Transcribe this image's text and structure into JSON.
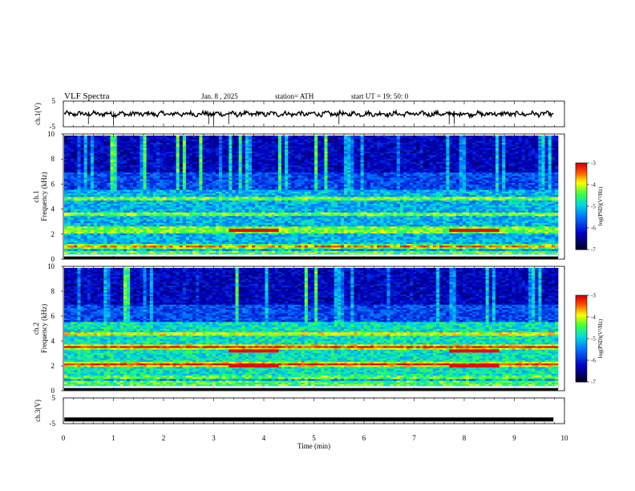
{
  "header": {
    "title": "VLF  Spectra",
    "date": "Jan. 8  , 2025",
    "station": "station= ATH",
    "start": "start  UT =   19: 50: 0"
  },
  "chart_data": [
    {
      "type": "line",
      "ylabel": "ch.1(V)",
      "ylim": [
        -5,
        5
      ],
      "yticks": [
        "5",
        "-5"
      ],
      "xlim": [
        0,
        10
      ]
    },
    {
      "type": "heatmap",
      "ylabel": "ch.1\nFrequency (kHz)",
      "ylim": [
        0,
        10
      ],
      "yticks": [
        "0",
        "2",
        "4",
        "6",
        "8",
        "10"
      ],
      "colorbar": {
        "label": "log(PSD)(V²/Hz)",
        "range": [
          -7,
          -3
        ],
        "ticks": [
          "-3",
          "-4",
          "-5",
          "-6",
          "-7"
        ]
      },
      "bands_khz": [
        0.4,
        0.8,
        1.0,
        2.2,
        2.4,
        3.6,
        4.8
      ],
      "strong_segments": [
        {
          "x": [
            3.3,
            4.3
          ],
          "f": 2.3
        },
        {
          "x": [
            7.7,
            8.7
          ],
          "f": 2.3
        }
      ]
    },
    {
      "type": "heatmap",
      "ylabel": "ch.2\nFrequency (kHz)",
      "ylim": [
        0,
        10
      ],
      "yticks": [
        "0",
        "2",
        "4",
        "6",
        "8",
        "10"
      ],
      "colorbar": {
        "label": "log(PSD)(V²/Hz)",
        "range": [
          -7,
          -3
        ],
        "ticks": [
          "-3",
          "-4",
          "-5",
          "-6",
          "-7"
        ]
      },
      "bands_khz": [
        0.5,
        1.0,
        2.0,
        2.2,
        3.4,
        3.6,
        4.6
      ],
      "strong_segments": [
        {
          "x": [
            3.3,
            4.3
          ],
          "f": 2.0
        },
        {
          "x": [
            7.7,
            8.7
          ],
          "f": 2.0
        },
        {
          "x": [
            3.3,
            4.3
          ],
          "f": 3.2
        },
        {
          "x": [
            7.7,
            8.7
          ],
          "f": 3.2
        }
      ]
    },
    {
      "type": "line",
      "ylabel": "ch.3(V)",
      "ylim": [
        -5,
        5
      ],
      "yticks": [
        "5",
        "-5"
      ],
      "xlim": [
        0,
        10
      ],
      "xlabel": "Time  (min)",
      "xticks": [
        "0",
        "1",
        "2",
        "3",
        "4",
        "5",
        "6",
        "7",
        "8",
        "9",
        "10"
      ]
    }
  ],
  "colors": {
    "black": "#000000",
    "blue": "#0000c8",
    "cyan": "#00c8ff",
    "green": "#40ff40",
    "yellow": "#ffff00",
    "red": "#e00000"
  }
}
